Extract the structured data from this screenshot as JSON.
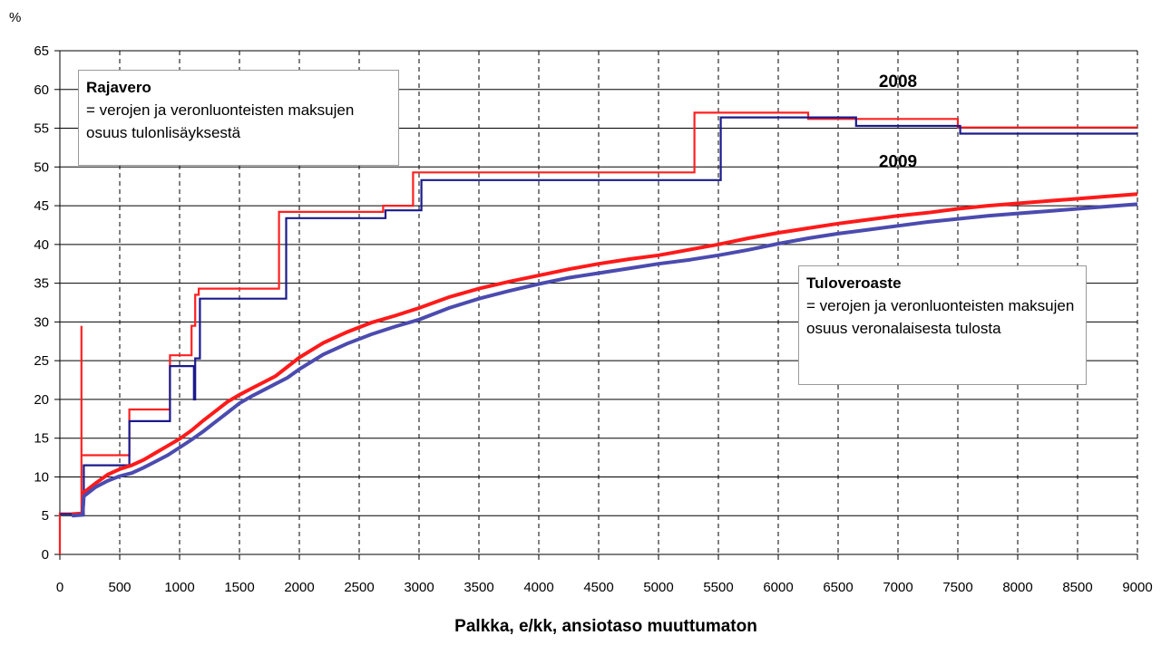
{
  "chart_data": {
    "type": "line",
    "ylabel": "%",
    "xlabel": "Palkka, e/kk, ansiotaso muuttumaton",
    "xlim": [
      0,
      9000
    ],
    "ylim": [
      0,
      65
    ],
    "x_ticks": [
      0,
      500,
      1000,
      1500,
      2000,
      2500,
      3000,
      3500,
      4000,
      4500,
      5000,
      5500,
      6000,
      6500,
      7000,
      7500,
      8000,
      8500,
      9000
    ],
    "y_ticks": [
      0,
      5,
      10,
      15,
      20,
      25,
      30,
      35,
      40,
      45,
      50,
      55,
      60,
      65
    ],
    "grid": {
      "y": "solid",
      "x": "dashed"
    },
    "series": [
      {
        "name": "2008",
        "group": "Rajavero",
        "color": "#ff2020",
        "width": 2.2,
        "points": [
          [
            0,
            0
          ],
          [
            0,
            5.3
          ],
          [
            180,
            5.3
          ],
          [
            180,
            29.5
          ],
          [
            180,
            12.8
          ],
          [
            580,
            12.8
          ],
          [
            580,
            18.7
          ],
          [
            920,
            18.7
          ],
          [
            920,
            25.7
          ],
          [
            1100,
            25.7
          ],
          [
            1100,
            29.5
          ],
          [
            1130,
            29.5
          ],
          [
            1130,
            33.5
          ],
          [
            1160,
            33.5
          ],
          [
            1160,
            34.3
          ],
          [
            1830,
            34.3
          ],
          [
            1830,
            44.2
          ],
          [
            2700,
            44.2
          ],
          [
            2700,
            45
          ],
          [
            2950,
            45
          ],
          [
            2950,
            49.3
          ],
          [
            5300,
            49.3
          ],
          [
            5300,
            57
          ],
          [
            6250,
            57
          ],
          [
            6250,
            56.2
          ],
          [
            7500,
            56.2
          ],
          [
            7500,
            55.1
          ],
          [
            9000,
            55.1
          ]
        ]
      },
      {
        "name": "2009",
        "group": "Rajavero",
        "color": "#1a1a8c",
        "width": 2.2,
        "points": [
          [
            0,
            5.2
          ],
          [
            200,
            5.2
          ],
          [
            200,
            11.5
          ],
          [
            580,
            11.5
          ],
          [
            580,
            17.2
          ],
          [
            920,
            17.2
          ],
          [
            920,
            24.3
          ],
          [
            1120,
            24.3
          ],
          [
            1120,
            20
          ],
          [
            1130,
            20
          ],
          [
            1130,
            25.3
          ],
          [
            1170,
            25.3
          ],
          [
            1170,
            33
          ],
          [
            1890,
            33
          ],
          [
            1890,
            43.4
          ],
          [
            2720,
            43.4
          ],
          [
            2720,
            44.4
          ],
          [
            3020,
            44.4
          ],
          [
            3020,
            48.3
          ],
          [
            5520,
            48.3
          ],
          [
            5520,
            56.4
          ],
          [
            6650,
            56.4
          ],
          [
            6650,
            55.3
          ],
          [
            7520,
            55.3
          ],
          [
            7520,
            54.3
          ],
          [
            9000,
            54.3
          ]
        ]
      },
      {
        "name": "2008",
        "group": "Tuloveroaste",
        "color": "#ff1a1a",
        "width": 4,
        "points": [
          [
            100,
            5.2
          ],
          [
            190,
            5.3
          ],
          [
            200,
            8
          ],
          [
            300,
            9.2
          ],
          [
            400,
            10.3
          ],
          [
            500,
            11
          ],
          [
            600,
            11.5
          ],
          [
            700,
            12.2
          ],
          [
            800,
            13.1
          ],
          [
            900,
            14
          ],
          [
            1000,
            14.9
          ],
          [
            1100,
            16
          ],
          [
            1200,
            17.3
          ],
          [
            1300,
            18.5
          ],
          [
            1400,
            19.7
          ],
          [
            1500,
            20.6
          ],
          [
            1600,
            21.4
          ],
          [
            1700,
            22.2
          ],
          [
            1800,
            23
          ],
          [
            1900,
            24.2
          ],
          [
            2000,
            25.4
          ],
          [
            2200,
            27.3
          ],
          [
            2400,
            28.7
          ],
          [
            2600,
            29.9
          ],
          [
            2800,
            30.8
          ],
          [
            3000,
            31.8
          ],
          [
            3250,
            33.2
          ],
          [
            3500,
            34.3
          ],
          [
            3750,
            35.2
          ],
          [
            4000,
            36
          ],
          [
            4250,
            36.8
          ],
          [
            4500,
            37.5
          ],
          [
            4750,
            38.1
          ],
          [
            5000,
            38.6
          ],
          [
            5250,
            39.3
          ],
          [
            5500,
            40
          ],
          [
            5750,
            40.8
          ],
          [
            6000,
            41.5
          ],
          [
            6250,
            42.1
          ],
          [
            6500,
            42.7
          ],
          [
            6750,
            43.2
          ],
          [
            7000,
            43.7
          ],
          [
            7250,
            44.1
          ],
          [
            7500,
            44.6
          ],
          [
            7750,
            45
          ],
          [
            8000,
            45.3
          ],
          [
            8250,
            45.6
          ],
          [
            8500,
            45.9
          ],
          [
            8750,
            46.2
          ],
          [
            9000,
            46.5
          ]
        ]
      },
      {
        "name": "2009",
        "group": "Tuloveroaste",
        "color": "#4b4baf",
        "width": 4,
        "points": [
          [
            100,
            5
          ],
          [
            190,
            5.1
          ],
          [
            200,
            7.5
          ],
          [
            300,
            8.7
          ],
          [
            400,
            9.5
          ],
          [
            500,
            10.1
          ],
          [
            600,
            10.5
          ],
          [
            700,
            11.2
          ],
          [
            800,
            12
          ],
          [
            900,
            12.8
          ],
          [
            1000,
            13.8
          ],
          [
            1100,
            14.8
          ],
          [
            1200,
            15.9
          ],
          [
            1300,
            17.1
          ],
          [
            1400,
            18.3
          ],
          [
            1500,
            19.5
          ],
          [
            1600,
            20.4
          ],
          [
            1700,
            21.2
          ],
          [
            1800,
            22
          ],
          [
            1900,
            22.8
          ],
          [
            2000,
            23.9
          ],
          [
            2200,
            25.8
          ],
          [
            2400,
            27.2
          ],
          [
            2600,
            28.4
          ],
          [
            2800,
            29.4
          ],
          [
            3000,
            30.3
          ],
          [
            3250,
            31.8
          ],
          [
            3500,
            33
          ],
          [
            3750,
            34
          ],
          [
            4000,
            34.9
          ],
          [
            4250,
            35.7
          ],
          [
            4500,
            36.3
          ],
          [
            4750,
            36.9
          ],
          [
            5000,
            37.5
          ],
          [
            5250,
            38
          ],
          [
            5500,
            38.6
          ],
          [
            5750,
            39.3
          ],
          [
            6000,
            40.1
          ],
          [
            6250,
            40.8
          ],
          [
            6500,
            41.4
          ],
          [
            6750,
            41.9
          ],
          [
            7000,
            42.4
          ],
          [
            7250,
            42.9
          ],
          [
            7500,
            43.3
          ],
          [
            7750,
            43.7
          ],
          [
            8000,
            44
          ],
          [
            8250,
            44.3
          ],
          [
            8500,
            44.6
          ],
          [
            8750,
            44.9
          ],
          [
            9000,
            45.2
          ]
        ]
      }
    ],
    "annotations": [
      {
        "text": "2008",
        "x": 7000,
        "y": 60.3
      },
      {
        "text": "2009",
        "x": 7000,
        "y": 50
      }
    ]
  },
  "notes": {
    "rajavero_title": "Rajavero",
    "rajavero_body": "= verojen ja veronluonteisten maksujen osuus tulonlisäyksestä",
    "tulovero_title": "Tuloveroaste",
    "tulovero_body": "= verojen ja veronluonteisten maksujen osuus veronalaisesta tulosta"
  }
}
